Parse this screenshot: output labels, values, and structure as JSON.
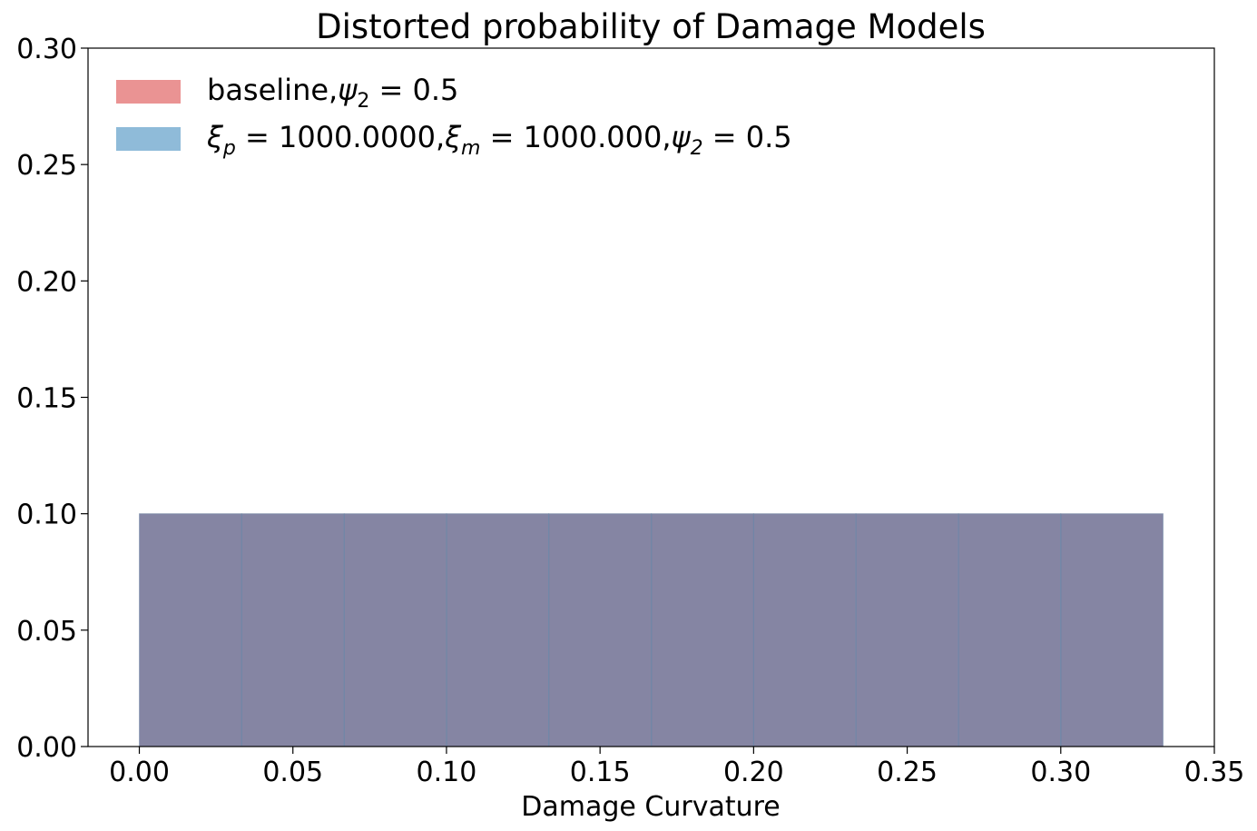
{
  "chart_data": {
    "type": "bar",
    "title": "Distorted probability of Damage Models",
    "xlabel": "Damage Curvature",
    "ylabel": "",
    "xlim": [
      -0.0167,
      0.35
    ],
    "ylim": [
      0,
      0.3
    ],
    "xticks": [
      "0.00",
      "0.05",
      "0.10",
      "0.15",
      "0.20",
      "0.25",
      "0.30",
      "0.35"
    ],
    "yticks": [
      "0.00",
      "0.05",
      "0.10",
      "0.15",
      "0.20",
      "0.25",
      "0.30"
    ],
    "bin_edges": [
      0.0,
      0.0333,
      0.0667,
      0.1,
      0.1333,
      0.1667,
      0.2,
      0.2333,
      0.2667,
      0.3,
      0.3333
    ],
    "series": [
      {
        "name": "baseline,ψ₂ = 0.5",
        "color": "#d62728",
        "opacity": 0.5,
        "values": [
          0.1,
          0.1,
          0.1,
          0.1,
          0.1,
          0.1,
          0.1,
          0.1,
          0.1,
          0.1
        ]
      },
      {
        "name": "ξp = 1000.0000,ξm = 1000.000,ψ₂ = 0.5",
        "color": "#1f77b4",
        "opacity": 0.5,
        "values": [
          0.1,
          0.1,
          0.1,
          0.1,
          0.1,
          0.1,
          0.1,
          0.1,
          0.1,
          0.1
        ]
      }
    ],
    "legend": {
      "placement": "top-left",
      "entries": [
        {
          "prefix": "baseline,",
          "math": "ψ",
          "sub": "2",
          "suffix": " = 0.5"
        },
        {
          "parts": [
            {
              "math": "ξ",
              "sub": "p",
              "suffix": " = 1000.0000,"
            },
            {
              "math": "ξ",
              "sub": "m",
              "suffix": " = 1000.000,"
            },
            {
              "math": "ψ",
              "sub": "2",
              "suffix": " = 0.5"
            }
          ]
        }
      ]
    },
    "grid": false
  }
}
